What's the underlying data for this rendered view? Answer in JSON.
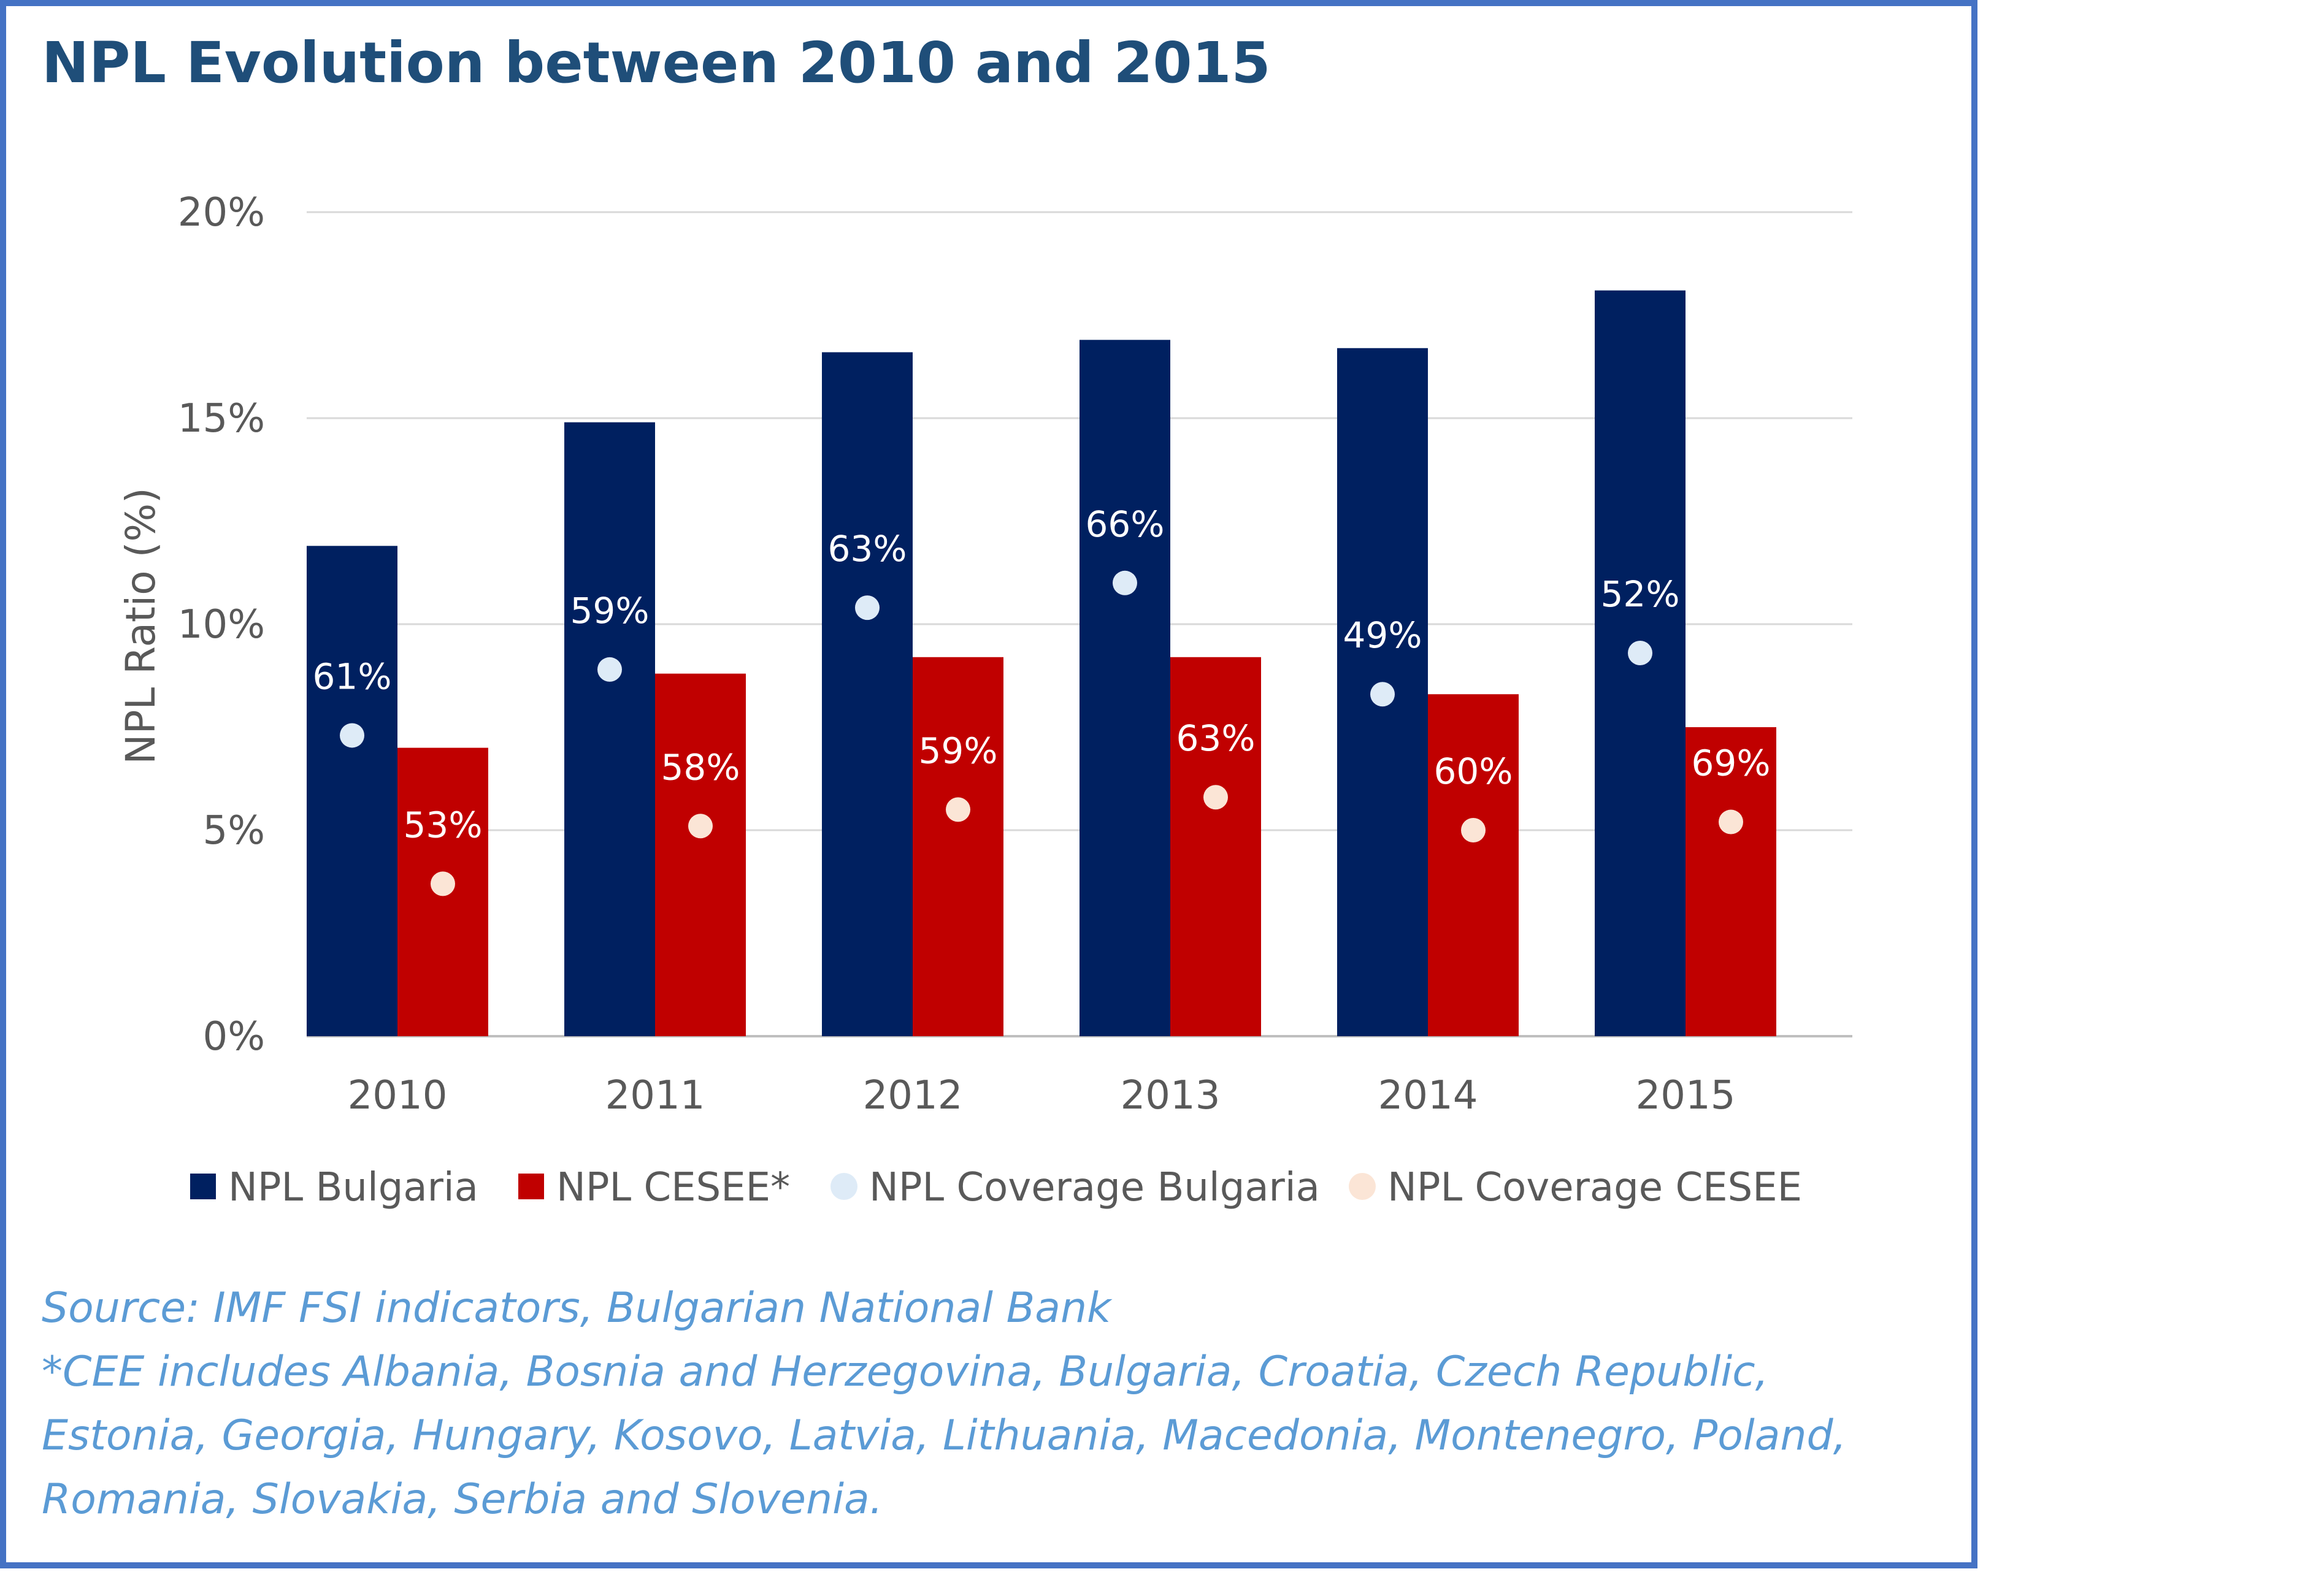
{
  "chart_data": {
    "type": "bar",
    "title": "NPL Evolution between 2010 and 2015",
    "ylabel": "NPL Ratio (%)",
    "xlabel": "",
    "ylim": [
      0,
      20
    ],
    "yticks": [
      0,
      5,
      10,
      15,
      20
    ],
    "ytick_labels": [
      "0%",
      "5%",
      "10%",
      "15%",
      "20%"
    ],
    "grid": true,
    "legend_position": "bottom",
    "categories": [
      "2010",
      "2011",
      "2012",
      "2013",
      "2014",
      "2015"
    ],
    "series": [
      {
        "name": "NPL Bulgaria",
        "kind": "bar",
        "color": "#002060",
        "values": [
          11.9,
          14.9,
          16.6,
          16.9,
          16.7,
          18.1
        ]
      },
      {
        "name": "NPL CESEE*",
        "kind": "bar",
        "color": "#C00000",
        "values": [
          7.0,
          8.8,
          9.2,
          9.2,
          8.3,
          7.5
        ]
      },
      {
        "name": "NPL Coverage Bulgaria",
        "kind": "point",
        "color": "#DEEBF7",
        "values": [
          7.3,
          8.9,
          10.4,
          11.0,
          8.3,
          9.3
        ],
        "labels": [
          "61%",
          "59%",
          "63%",
          "66%",
          "49%",
          "52%"
        ]
      },
      {
        "name": "NPL Coverage CESEE",
        "kind": "point",
        "color": "#FBE5D6",
        "values": [
          3.7,
          5.1,
          5.5,
          5.8,
          5.0,
          5.2
        ],
        "labels": [
          "53%",
          "58%",
          "59%",
          "63%",
          "60%",
          "69%"
        ]
      }
    ]
  },
  "notes": {
    "source": "Source: IMF FSI indicators, Bulgarian National Bank",
    "footnote_lines": [
      "*CEE includes Albania, Bosnia and Herzegovina, Bulgaria, Croatia, Czech Republic,",
      "Estonia, Georgia, Hungary, Kosovo, Latvia, Lithuania, Macedonia, Montenegro, Poland,",
      "Romania, Slovakia, Serbia and Slovenia."
    ]
  },
  "colors": {
    "border": "#4472C4",
    "title": "#1F4E79",
    "notes": "#5B9BD5",
    "axis_text": "#595959",
    "gridline": "#D9D9D9"
  }
}
